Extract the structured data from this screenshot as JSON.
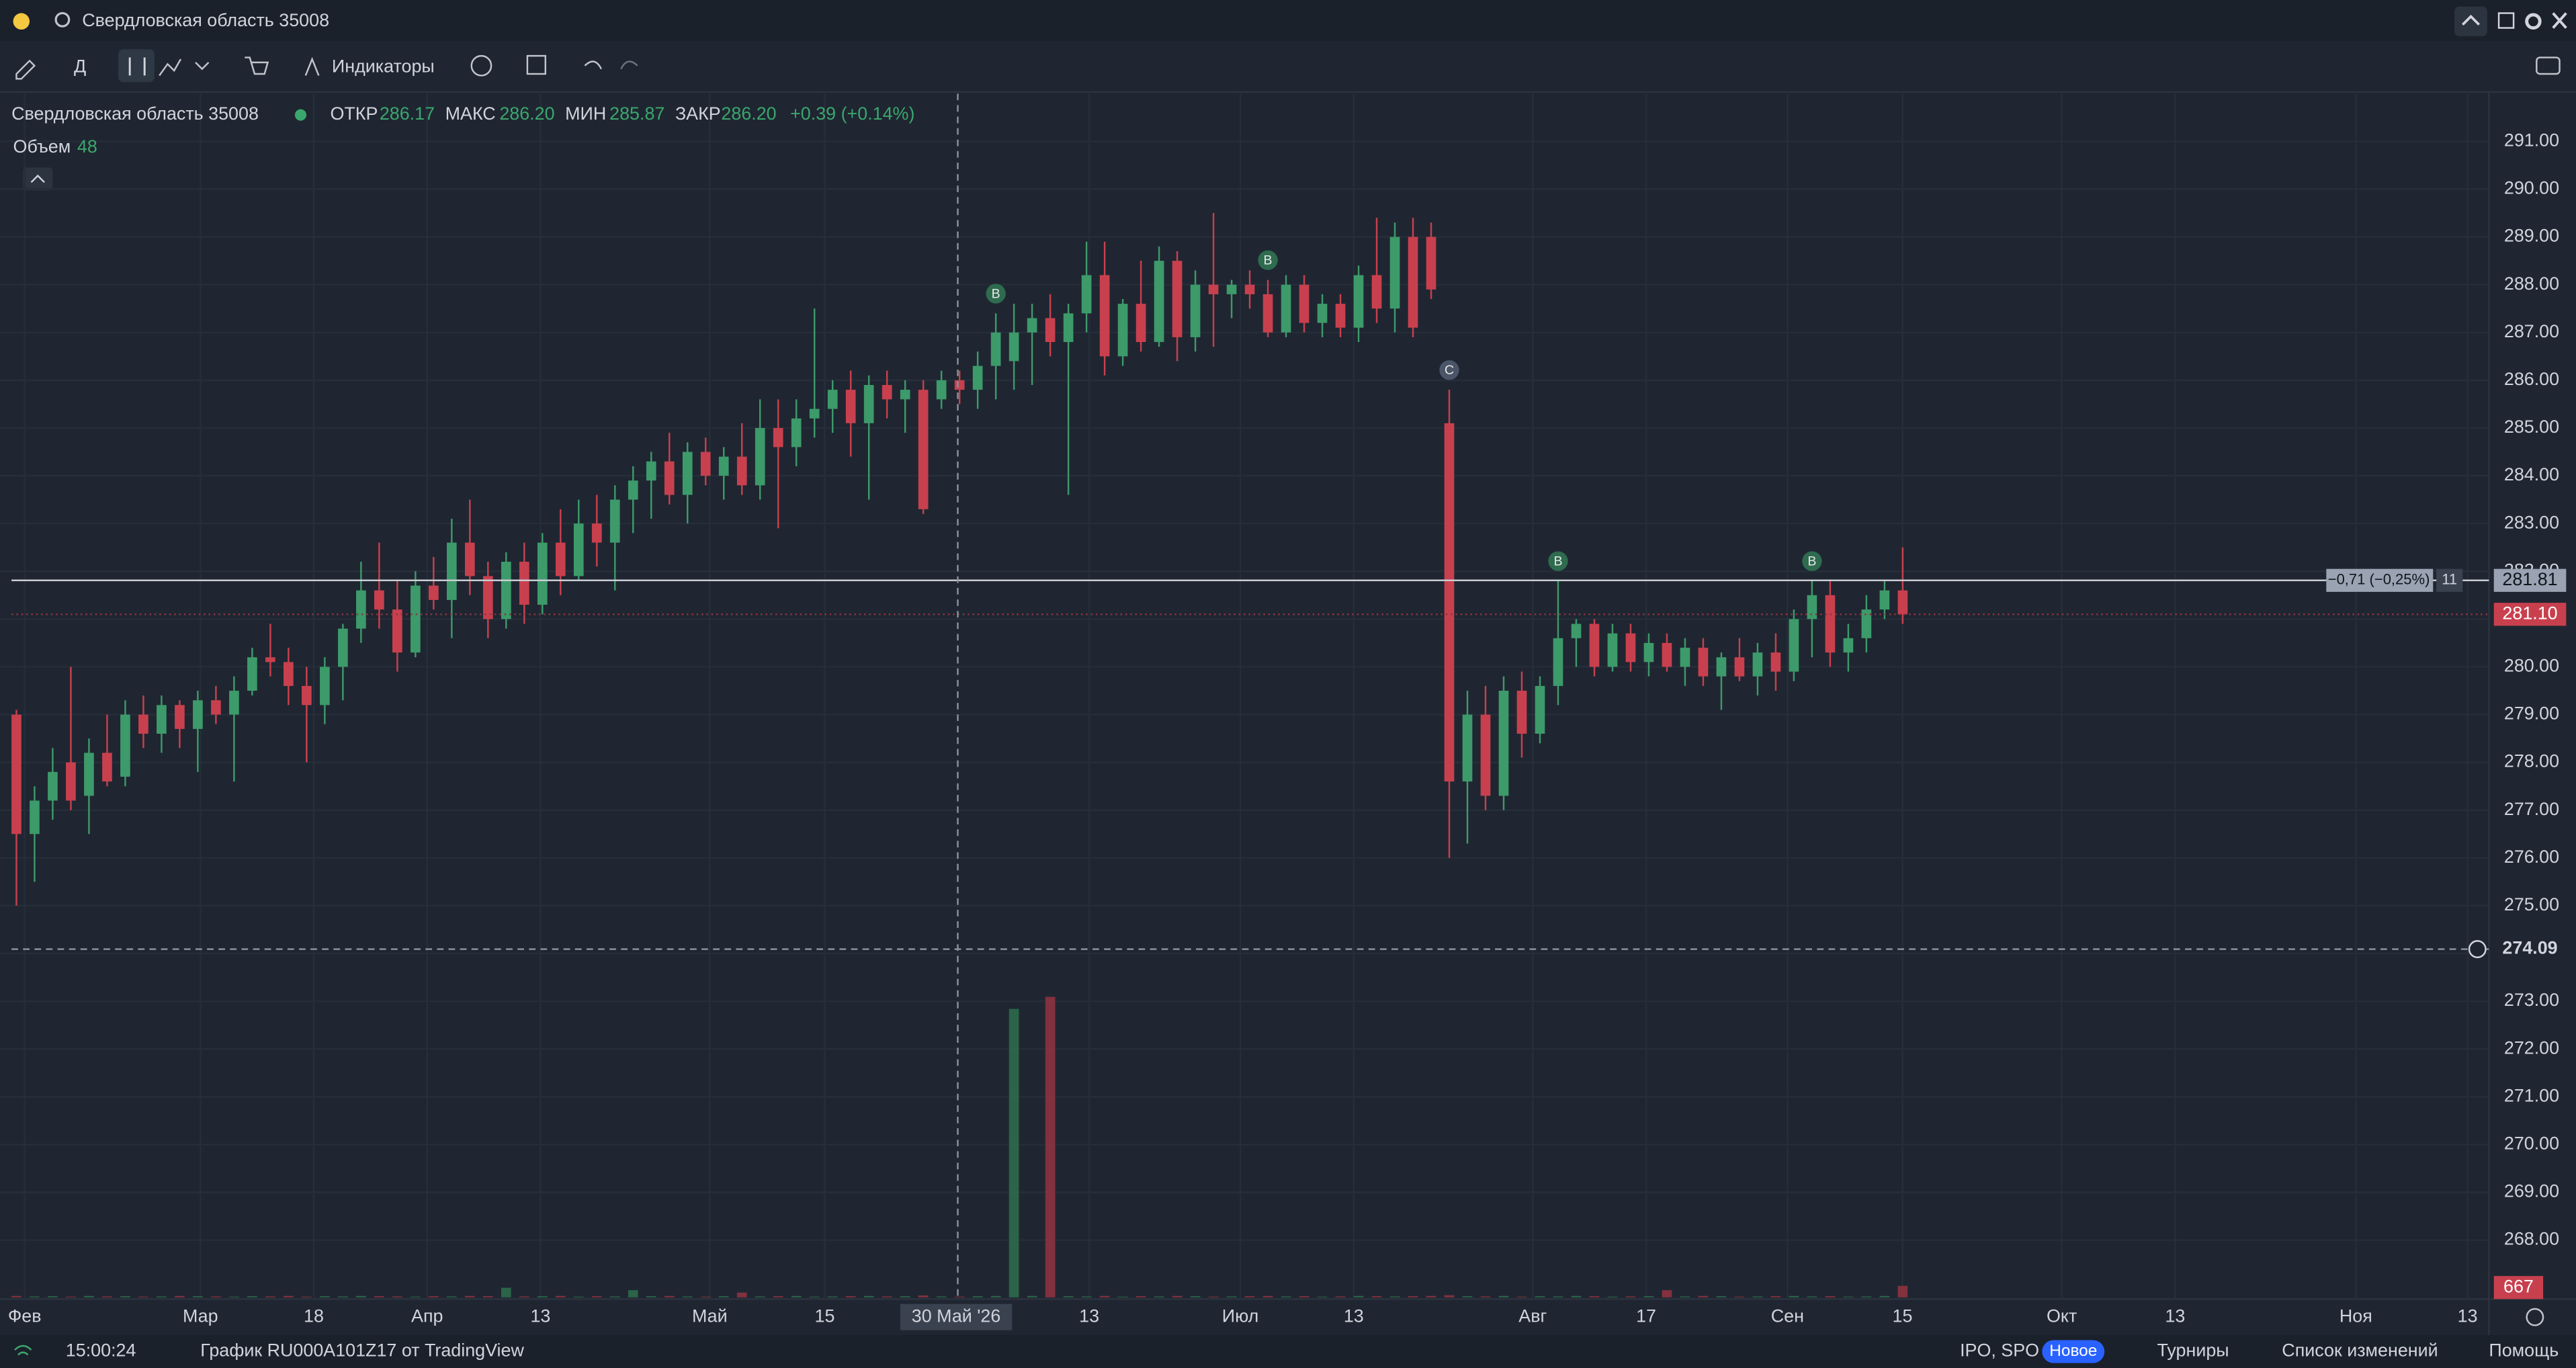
{
  "header": {
    "title": "Свердловская область 35008"
  },
  "toolbar": {
    "interval": "Д",
    "indicators": "Индикаторы"
  },
  "legend": {
    "name": "Свердловская область 35008",
    "open_label": "ОТКР",
    "open": "286.17",
    "high_label": "МАКС",
    "high": "286.20",
    "low_label": "МИН",
    "low": "285.87",
    "close_label": "ЗАКР",
    "close": "286.20",
    "change": "+0.39 (+0.14%)",
    "volume_label": "Объем",
    "volume": "48"
  },
  "chart_data": {
    "type": "candlestick",
    "up_color": "#3d9a6a",
    "down_color": "#c8404e",
    "ylim": [
      266.8,
      292.0
    ],
    "yticks": [
      {
        "value": 268,
        "label": "268.00"
      },
      {
        "value": 269,
        "label": "269.00"
      },
      {
        "value": 270,
        "label": "270.00"
      },
      {
        "value": 271,
        "label": "271.00"
      },
      {
        "value": 272,
        "label": "272.00"
      },
      {
        "value": 273,
        "label": "273.00"
      },
      {
        "value": 274,
        "label": "274.00"
      },
      {
        "value": 275,
        "label": "275.00"
      },
      {
        "value": 276,
        "label": "276.00"
      },
      {
        "value": 277,
        "label": "277.00"
      },
      {
        "value": 278,
        "label": "278.00"
      },
      {
        "value": 279,
        "label": "279.00"
      },
      {
        "value": 280,
        "label": "280.00"
      },
      {
        "value": 281,
        "label": "281.00"
      },
      {
        "value": 282,
        "label": "282.00"
      },
      {
        "value": 283,
        "label": "283.00"
      },
      {
        "value": 284,
        "label": "284.00"
      },
      {
        "value": 285,
        "label": "285.00"
      },
      {
        "value": 286,
        "label": "286.00"
      },
      {
        "value": 287,
        "label": "287.00"
      },
      {
        "value": 288,
        "label": "288.00"
      },
      {
        "value": 289,
        "label": "289.00"
      },
      {
        "value": 290,
        "label": "290.00"
      },
      {
        "value": 291,
        "label": "291.00"
      }
    ],
    "xlabels": [
      "Фев",
      "Мар",
      "18",
      "Апр",
      "13",
      "Май",
      "15",
      "13",
      "Июл",
      "13",
      "Авг",
      "17",
      "Сен",
      "15",
      "Окт",
      "13",
      "Ноя",
      "13"
    ],
    "crosshair": {
      "x_label": "30 Май '26",
      "y": 274.09
    },
    "last_price": {
      "value": 281.81,
      "change": "−0,71 (−0,25%)",
      "count": "11"
    },
    "close_price": {
      "value": 281.1,
      "label": "281.10"
    },
    "volume_label": "667",
    "markers": [
      {
        "label": "B",
        "index": 54
      },
      {
        "label": "B",
        "index": 69
      },
      {
        "label": "C",
        "index": 79
      },
      {
        "label": "B",
        "index": 85
      },
      {
        "label": "B",
        "index": 99
      }
    ],
    "ohlc": [
      [
        279.0,
        279.1,
        275.0,
        276.5
      ],
      [
        276.5,
        277.5,
        275.5,
        277.2
      ],
      [
        277.2,
        278.3,
        276.8,
        277.8
      ],
      [
        278.0,
        280.0,
        277.0,
        277.2
      ],
      [
        277.3,
        278.5,
        276.5,
        278.2
      ],
      [
        278.2,
        279.0,
        277.5,
        277.6
      ],
      [
        277.7,
        279.3,
        277.5,
        279.0
      ],
      [
        279.0,
        279.4,
        278.3,
        278.6
      ],
      [
        278.6,
        279.4,
        278.2,
        279.2
      ],
      [
        279.2,
        279.3,
        278.3,
        278.7
      ],
      [
        278.7,
        279.5,
        277.8,
        279.3
      ],
      [
        279.3,
        279.6,
        278.8,
        279.0
      ],
      [
        279.0,
        279.8,
        277.6,
        279.5
      ],
      [
        279.5,
        280.4,
        279.4,
        280.2
      ],
      [
        280.2,
        280.9,
        279.8,
        280.1
      ],
      [
        280.1,
        280.4,
        279.2,
        279.6
      ],
      [
        279.6,
        280.0,
        278.0,
        279.2
      ],
      [
        279.2,
        280.2,
        278.8,
        280.0
      ],
      [
        280.0,
        280.9,
        279.3,
        280.8
      ],
      [
        280.8,
        282.2,
        280.5,
        281.6
      ],
      [
        281.6,
        282.6,
        280.8,
        281.2
      ],
      [
        281.2,
        281.8,
        279.9,
        280.3
      ],
      [
        280.3,
        282.0,
        280.2,
        281.7
      ],
      [
        281.7,
        282.3,
        281.2,
        281.4
      ],
      [
        281.4,
        283.1,
        280.6,
        282.6
      ],
      [
        282.6,
        283.5,
        281.5,
        281.9
      ],
      [
        281.9,
        282.2,
        280.6,
        281.0
      ],
      [
        281.0,
        282.4,
        280.8,
        282.2
      ],
      [
        282.2,
        282.6,
        280.9,
        281.3
      ],
      [
        281.3,
        282.8,
        281.1,
        282.6
      ],
      [
        282.6,
        283.3,
        281.5,
        281.9
      ],
      [
        281.9,
        283.5,
        281.8,
        283.0
      ],
      [
        283.0,
        283.6,
        282.1,
        282.6
      ],
      [
        282.6,
        283.8,
        281.6,
        283.5
      ],
      [
        283.5,
        284.2,
        282.8,
        283.9
      ],
      [
        283.9,
        284.5,
        283.1,
        284.3
      ],
      [
        284.3,
        284.9,
        283.4,
        283.6
      ],
      [
        283.6,
        284.7,
        283.0,
        284.5
      ],
      [
        284.5,
        284.8,
        283.8,
        284.0
      ],
      [
        284.0,
        284.6,
        283.5,
        284.4
      ],
      [
        284.4,
        285.1,
        283.6,
        283.8
      ],
      [
        283.8,
        285.6,
        283.5,
        285.0
      ],
      [
        285.0,
        285.6,
        282.9,
        284.6
      ],
      [
        284.6,
        285.6,
        284.2,
        285.2
      ],
      [
        285.2,
        287.5,
        284.8,
        285.4
      ],
      [
        285.4,
        286.0,
        284.9,
        285.8
      ],
      [
        285.8,
        286.2,
        284.4,
        285.1
      ],
      [
        285.1,
        286.1,
        283.5,
        285.9
      ],
      [
        285.9,
        286.2,
        285.2,
        285.6
      ],
      [
        285.6,
        286.0,
        284.9,
        285.8
      ],
      [
        285.8,
        286.0,
        283.2,
        283.3
      ],
      [
        285.6,
        286.2,
        285.4,
        286.0
      ],
      [
        286.0,
        286.2,
        285.5,
        285.8
      ],
      [
        285.8,
        286.6,
        285.4,
        286.3
      ],
      [
        286.3,
        287.4,
        285.6,
        287.0
      ],
      [
        286.4,
        287.6,
        285.8,
        287.0
      ],
      [
        287.0,
        287.6,
        285.9,
        287.3
      ],
      [
        287.3,
        287.8,
        286.5,
        286.8
      ],
      [
        286.8,
        287.6,
        283.6,
        287.4
      ],
      [
        287.4,
        288.9,
        287.0,
        288.2
      ],
      [
        288.2,
        288.9,
        286.1,
        286.5
      ],
      [
        286.5,
        287.7,
        286.3,
        287.6
      ],
      [
        287.6,
        288.5,
        286.6,
        286.8
      ],
      [
        286.8,
        288.8,
        286.7,
        288.5
      ],
      [
        288.5,
        288.7,
        286.4,
        286.9
      ],
      [
        286.9,
        288.3,
        286.6,
        288.0
      ],
      [
        288.0,
        289.5,
        286.7,
        287.8
      ],
      [
        287.8,
        288.1,
        287.3,
        288.0
      ],
      [
        288.0,
        288.3,
        287.5,
        287.8
      ],
      [
        287.8,
        288.1,
        286.9,
        287.0
      ],
      [
        287.0,
        288.2,
        286.9,
        288.0
      ],
      [
        288.0,
        288.2,
        287.0,
        287.2
      ],
      [
        287.2,
        287.8,
        286.9,
        287.6
      ],
      [
        287.6,
        287.8,
        286.9,
        287.1
      ],
      [
        287.1,
        288.4,
        286.8,
        288.2
      ],
      [
        288.2,
        289.4,
        287.2,
        287.5
      ],
      [
        287.5,
        289.3,
        287.0,
        289.0
      ],
      [
        289.0,
        289.4,
        286.9,
        287.1
      ],
      [
        289.0,
        289.3,
        287.7,
        287.9
      ],
      [
        285.1,
        285.8,
        276.0,
        277.6
      ],
      [
        277.6,
        279.5,
        276.3,
        279.0
      ],
      [
        279.0,
        279.6,
        277.0,
        277.3
      ],
      [
        277.3,
        279.8,
        277.0,
        279.5
      ],
      [
        279.5,
        279.9,
        278.1,
        278.6
      ],
      [
        278.6,
        279.8,
        278.4,
        279.6
      ],
      [
        279.6,
        281.8,
        279.2,
        280.6
      ],
      [
        280.6,
        281.0,
        280.0,
        280.9
      ],
      [
        280.9,
        281.0,
        279.8,
        280.0
      ],
      [
        280.0,
        280.9,
        279.9,
        280.7
      ],
      [
        280.7,
        280.9,
        279.9,
        280.1
      ],
      [
        280.1,
        280.7,
        279.8,
        280.5
      ],
      [
        280.5,
        280.7,
        279.9,
        280.0
      ],
      [
        280.0,
        280.6,
        279.6,
        280.4
      ],
      [
        280.4,
        280.6,
        279.6,
        279.8
      ],
      [
        279.8,
        280.3,
        279.1,
        280.2
      ],
      [
        280.2,
        280.6,
        279.7,
        279.8
      ],
      [
        279.8,
        280.5,
        279.4,
        280.3
      ],
      [
        280.3,
        280.7,
        279.5,
        279.9
      ],
      [
        279.9,
        281.2,
        279.7,
        281.0
      ],
      [
        281.0,
        281.8,
        280.2,
        281.5
      ],
      [
        281.5,
        281.8,
        280.0,
        280.3
      ],
      [
        280.3,
        280.9,
        279.9,
        280.6
      ],
      [
        280.6,
        281.5,
        280.3,
        281.2
      ],
      [
        281.2,
        281.8,
        281.0,
        281.6
      ],
      [
        281.6,
        282.5,
        280.9,
        281.1
      ]
    ],
    "volume": [
      6,
      4,
      5,
      3,
      6,
      4,
      5,
      3,
      4,
      6,
      5,
      4,
      3,
      5,
      4,
      6,
      3,
      5,
      4,
      6,
      5,
      4,
      3,
      5,
      4,
      6,
      5,
      40,
      4,
      5,
      6,
      3,
      5,
      4,
      30,
      5,
      6,
      4,
      3,
      5,
      20,
      4,
      5,
      6,
      3,
      4,
      5,
      6,
      4,
      5,
      8,
      4,
      3,
      5,
      6,
      1200,
      6,
      1250,
      5,
      4,
      6,
      3,
      5,
      4,
      6,
      5,
      3,
      4,
      5,
      6,
      4,
      5,
      3,
      4,
      6,
      5,
      4,
      5,
      6,
      9,
      5,
      4,
      6,
      3,
      5,
      4,
      6,
      5,
      3,
      4,
      5,
      30,
      4,
      6,
      5,
      3,
      4,
      5,
      6,
      4,
      5,
      3,
      4,
      6,
      48
    ]
  },
  "statusbar": {
    "time": "15:00:24",
    "chart_info": "График RU000A101Z17 от TradingView",
    "ipo": "IPO, SPO",
    "badge": "Новое",
    "tournaments": "Турниры",
    "changelog": "Список изменений",
    "help": "Помощь"
  }
}
